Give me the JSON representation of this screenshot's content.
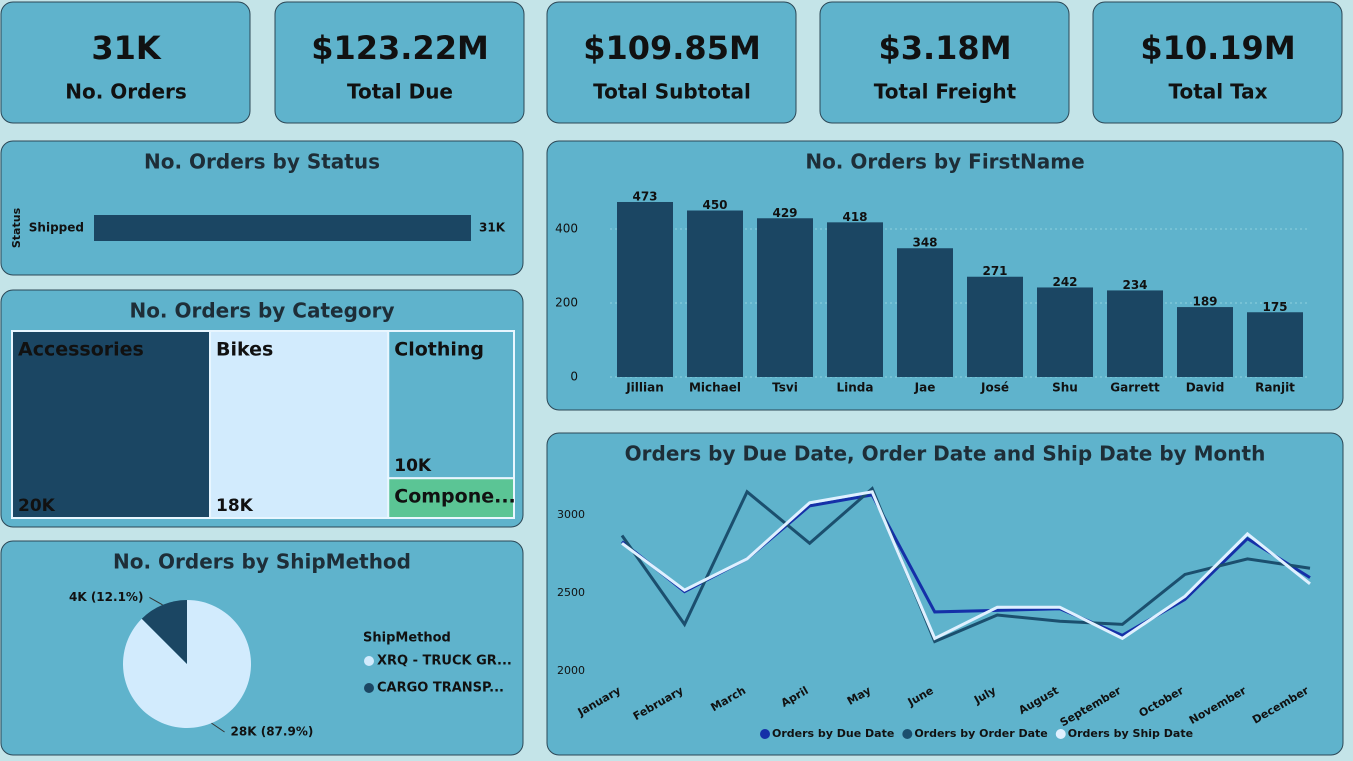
{
  "kpis": [
    {
      "value": "31K",
      "label": "No. Orders"
    },
    {
      "value": "$123.22M",
      "label": "Total Due"
    },
    {
      "value": "$109.85M",
      "label": "Total Subtotal"
    },
    {
      "value": "$3.18M",
      "label": "Total Freight"
    },
    {
      "value": "$10.19M",
      "label": "Total Tax"
    }
  ],
  "chart_data": [
    {
      "type": "hbar",
      "title": "No. Orders by Status",
      "y_label": "Status",
      "categories": [
        "Shipped"
      ],
      "values": [
        31000
      ],
      "value_labels": [
        "31K"
      ],
      "color": "#1b4663"
    },
    {
      "type": "treemap",
      "title": "No. Orders by Category",
      "categories": [
        "Accessories",
        "Bikes",
        "Clothing",
        "Compone..."
      ],
      "values": [
        20000,
        18000,
        10000,
        2700
      ],
      "value_labels": [
        "20K",
        "18K",
        "10K",
        null
      ],
      "colors": [
        "#1b4663",
        "#d2ebfd",
        "#5fb3cc",
        "#5bc595"
      ]
    },
    {
      "type": "pie",
      "title": "No. Orders by ShipMethod",
      "legend_title": "ShipMethod",
      "categories": [
        "XRQ - TRUCK GR...",
        "CARGO TRANSP..."
      ],
      "values": [
        28000,
        4000
      ],
      "value_labels": [
        "28K (87.9%)",
        "4K (12.1%)"
      ],
      "colors": [
        "#d2ebfd",
        "#1b4663"
      ]
    },
    {
      "type": "bar",
      "title": "No. Orders by FirstName",
      "categories": [
        "Jillian",
        "Michael",
        "Tsvi",
        "Linda",
        "Jae",
        "José",
        "Shu",
        "Garrett",
        "David",
        "Ranjit"
      ],
      "values": [
        473,
        450,
        429,
        418,
        348,
        271,
        242,
        234,
        189,
        175
      ],
      "color": "#1b4663",
      "ylim": [
        0,
        500
      ],
      "yticks": [
        0,
        200,
        400
      ],
      "grid": true
    },
    {
      "type": "line",
      "title": "Orders by Due Date, Order Date and Ship Date by Month",
      "categories": [
        "January",
        "February",
        "March",
        "April",
        "May",
        "June",
        "July",
        "August",
        "September",
        "October",
        "November",
        "December"
      ],
      "series": [
        {
          "name": "Orders by Due Date",
          "color": "#1530a8",
          "values": [
            2830,
            2510,
            2720,
            3060,
            3130,
            2380,
            2390,
            2400,
            2230,
            2460,
            2850,
            2600
          ]
        },
        {
          "name": "Orders by Order Date",
          "color": "#1b4f6e",
          "values": [
            2870,
            2300,
            3150,
            2820,
            3170,
            2190,
            2360,
            2320,
            2300,
            2620,
            2720,
            2660
          ]
        },
        {
          "name": "Orders by Ship Date",
          "color": "#dff0ff",
          "values": [
            2820,
            2520,
            2720,
            3080,
            3150,
            2210,
            2410,
            2410,
            2210,
            2480,
            2880,
            2560
          ]
        }
      ],
      "ylim": [
        1950,
        3200
      ],
      "yticks": [
        2000,
        2500,
        3000
      ],
      "legend": "bottom"
    }
  ]
}
